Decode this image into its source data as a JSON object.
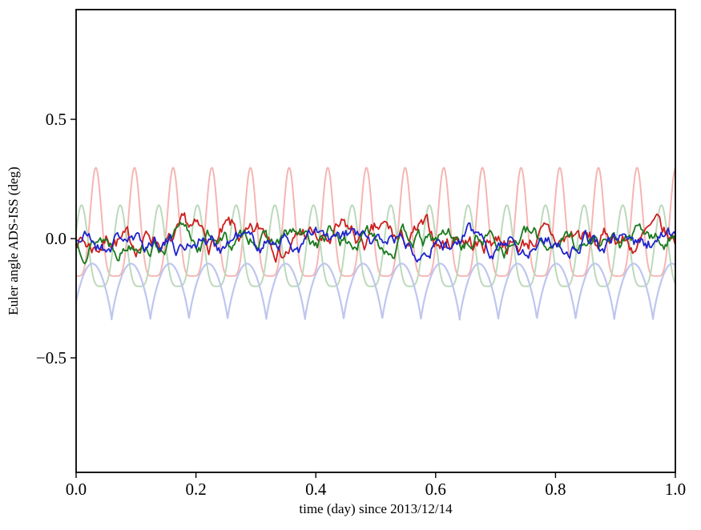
{
  "figure": {
    "background": "#ffffff",
    "axis_color": "#000000"
  },
  "chart_data": {
    "type": "line",
    "title": "",
    "xlabel": "time (day) since 2013/12/14",
    "ylabel": "Euler angle ADS-ISS (deg)",
    "xlim": [
      0.0,
      1.0
    ],
    "ylim": [
      -0.98,
      0.96
    ],
    "grid": false,
    "legend": "none",
    "xticks": [
      {
        "v": 0.0,
        "label": "0.0"
      },
      {
        "v": 0.2,
        "label": "0.2"
      },
      {
        "v": 0.4,
        "label": "0.4"
      },
      {
        "v": 0.6,
        "label": "0.6"
      },
      {
        "v": 0.8,
        "label": "0.8"
      },
      {
        "v": 1.0,
        "label": "1.0"
      }
    ],
    "yticks": [
      {
        "v": -0.5,
        "label": "−0.5"
      },
      {
        "v": 0.0,
        "label": "0.0"
      },
      {
        "v": 0.5,
        "label": "0.5"
      }
    ],
    "series": [
      {
        "name": "euler-angle-1-orbital-oscillation",
        "color": "#f5b6b4",
        "width": 2.0,
        "summary": {
          "max": 0.3,
          "min": -0.16,
          "cycles_per_day": 15.5,
          "shape": "narrow peaks, broad troughs"
        },
        "gen": {
          "kind": "peaked_sine",
          "mean": 0.07,
          "amp": 0.227,
          "cycles": 15.5,
          "phase": 0.74,
          "p": 2.5,
          "n": 1500
        }
      },
      {
        "name": "euler-angle-2-orbital-oscillation",
        "color": "#bcd9bb",
        "width": 2.0,
        "summary": {
          "max": 0.14,
          "min": -0.2,
          "cycles_per_day": 15.5,
          "shape": "narrow peaks, broad troughs"
        },
        "gen": {
          "kind": "peaked_sine",
          "mean": -0.03,
          "amp": 0.17,
          "cycles": 15.5,
          "phase": 0.11,
          "p": 2.0,
          "n": 1500
        }
      },
      {
        "name": "euler-angle-3-orbital-oscillation",
        "color": "#bfc6ee",
        "width": 2.2,
        "summary": {
          "max": -0.1,
          "min": -0.34,
          "cycles_per_day": 15.5,
          "shape": "rounded scallops with cusps at bottom"
        },
        "gen": {
          "kind": "abs_sine",
          "mean": -0.34,
          "amp": 0.235,
          "cycles": 15.5,
          "phase": 0.08,
          "p": 0.8,
          "n": 1500
        }
      },
      {
        "name": "euler-angle-1-residual",
        "color": "#cc1f1d",
        "width": 1.8,
        "summary": {
          "max": 0.12,
          "min": -0.11,
          "character": "noisy residual around 0"
        },
        "gen": {
          "kind": "noise",
          "seed": 7,
          "mean": -0.005,
          "step": 0.06,
          "damp": 0.86,
          "wob": 0.022,
          "wobc": 15.5,
          "wobph": 0.3,
          "n": 420
        }
      },
      {
        "name": "euler-angle-2-residual",
        "color": "#1a7a1d",
        "width": 1.8,
        "summary": {
          "max": 0.08,
          "min": -0.09,
          "character": "noisy residual around 0"
        },
        "gen": {
          "kind": "noise",
          "seed": 13,
          "mean": -0.005,
          "step": 0.05,
          "damp": 0.85,
          "wob": 0.018,
          "wobc": 15.5,
          "wobph": 0.62,
          "n": 420
        }
      },
      {
        "name": "euler-angle-3-residual",
        "color": "#1f24cc",
        "width": 1.8,
        "summary": {
          "max": 0.08,
          "min": -0.09,
          "character": "noisy residual around 0"
        },
        "gen": {
          "kind": "noise",
          "seed": 21,
          "mean": -0.012,
          "step": 0.05,
          "damp": 0.85,
          "wob": 0.02,
          "wobc": 15.5,
          "wobph": 0.05,
          "n": 420
        }
      }
    ]
  }
}
